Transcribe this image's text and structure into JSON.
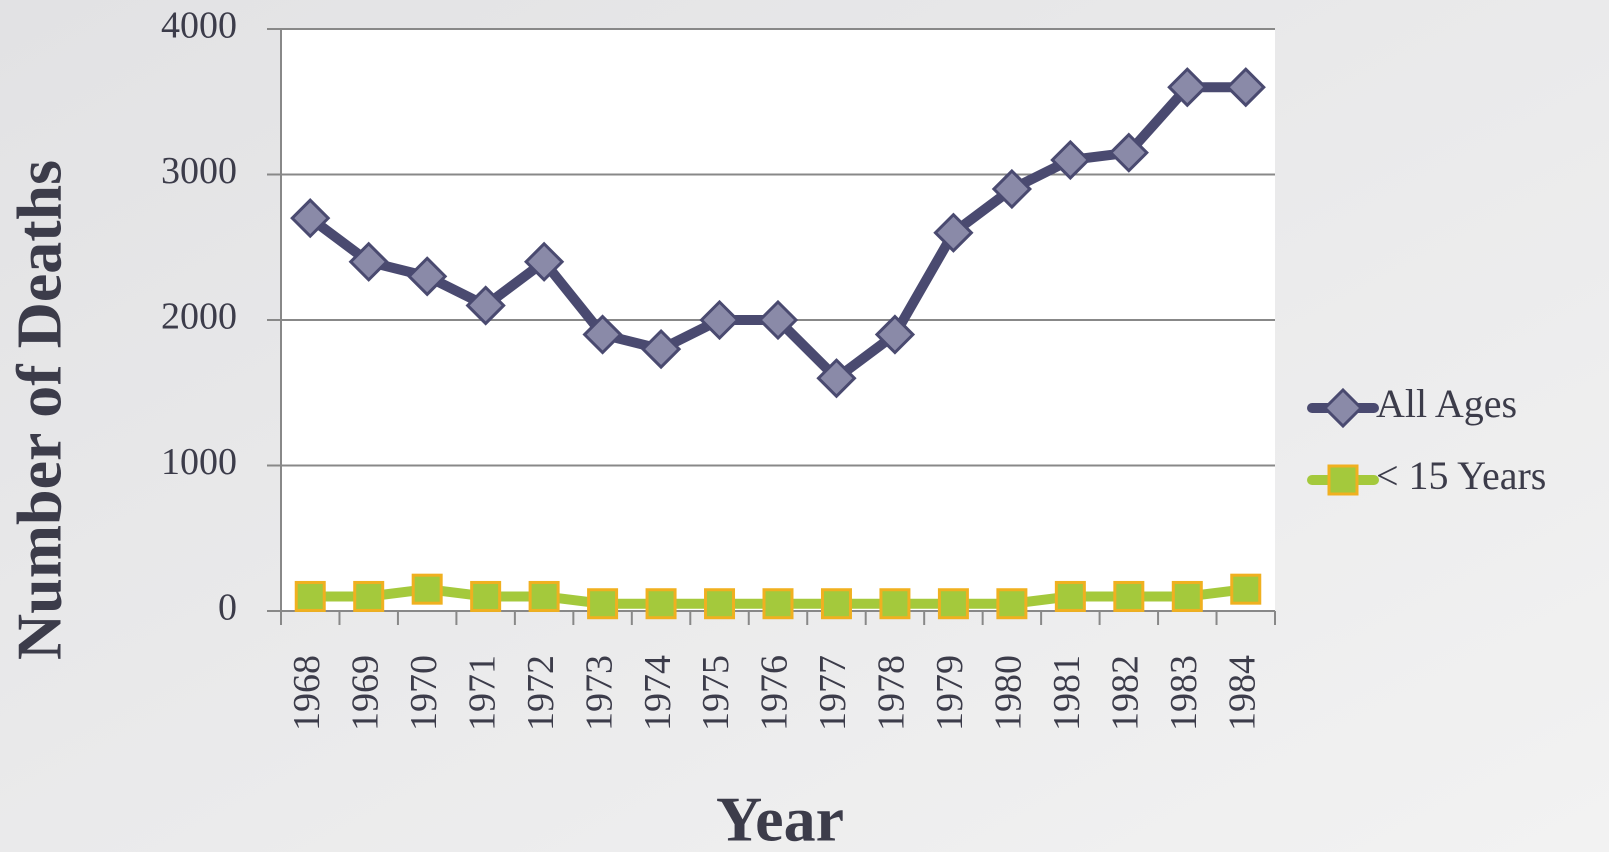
{
  "chart_data": {
    "type": "line",
    "x_label": "Year",
    "y_label": "Number of Deaths",
    "categories": [
      "1968",
      "1969",
      "1970",
      "1971",
      "1972",
      "1973",
      "1974",
      "1975",
      "1976",
      "1977",
      "1978",
      "1979",
      "1980",
      "1981",
      "1982",
      "1983",
      "1984"
    ],
    "series": [
      {
        "name": "All Ages",
        "color": "#4a4a70",
        "marker": "diamond",
        "values": [
          2700,
          2400,
          2300,
          2100,
          2400,
          1900,
          1800,
          2000,
          2000,
          1600,
          1900,
          2600,
          2900,
          3100,
          3150,
          3600,
          3600
        ]
      },
      {
        "name": "< 15 Years",
        "color": "#a4c93c",
        "marker": "square",
        "values": [
          100,
          100,
          150,
          100,
          100,
          50,
          50,
          50,
          50,
          50,
          50,
          50,
          50,
          100,
          100,
          100,
          150
        ]
      }
    ],
    "ylim": [
      0,
      4000
    ],
    "yticks": [
      0,
      1000,
      2000,
      3000,
      4000
    ],
    "grid": true,
    "legend": "right"
  }
}
